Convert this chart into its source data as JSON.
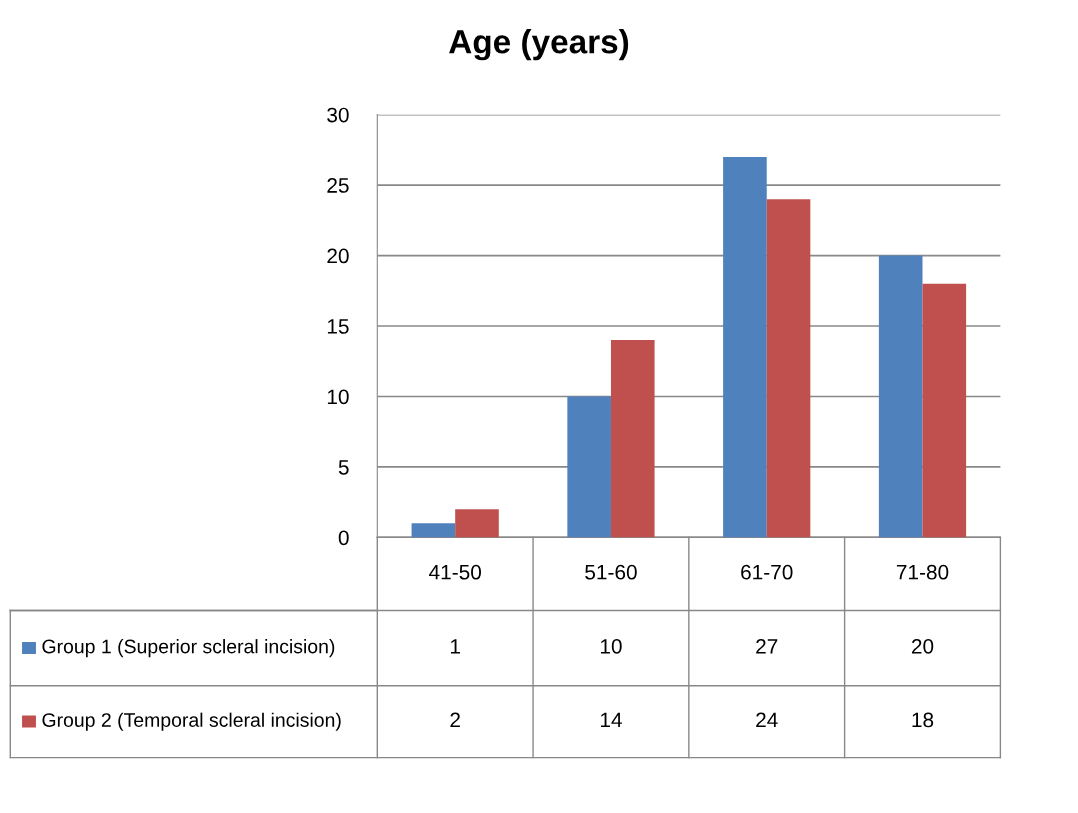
{
  "chart_data": {
    "type": "bar",
    "title": "Age (years)",
    "categories": [
      "41-50",
      "51-60",
      "61-70",
      "71-80"
    ],
    "series": [
      {
        "name": "Group 1 (Superior scleral incision)",
        "color": "#4f81bd",
        "values": [
          1,
          10,
          27,
          20
        ]
      },
      {
        "name": "Group 2 (Temporal scleral incision)",
        "color": "#c0504d",
        "values": [
          2,
          14,
          24,
          18
        ]
      }
    ],
    "ylim": [
      0,
      30
    ],
    "yticks": [
      0,
      5,
      10,
      15,
      20,
      25,
      30
    ],
    "grid": "y",
    "legend": "bottom",
    "data_labels": true
  }
}
